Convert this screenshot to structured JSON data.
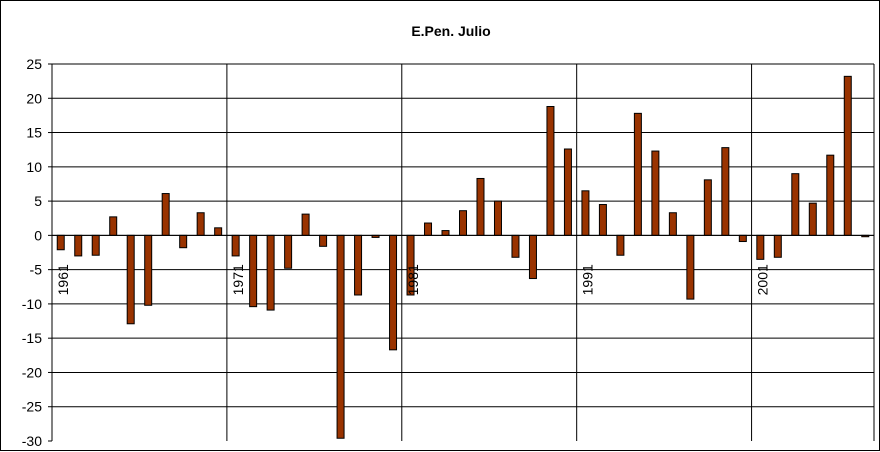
{
  "chart_data": {
    "type": "bar",
    "title": "E.Pen. Julio",
    "xlabel": "",
    "ylabel": "",
    "ylim": [
      -30,
      25
    ],
    "yticks": [
      25,
      20,
      15,
      10,
      5,
      0,
      -5,
      -10,
      -15,
      -20,
      -25,
      -30
    ],
    "x_tick_labels": [
      {
        "label": "1961",
        "index": 0
      },
      {
        "label": "1971",
        "index": 10
      },
      {
        "label": "1981",
        "index": 20
      },
      {
        "label": "1991",
        "index": 30
      },
      {
        "label": "2001",
        "index": 40
      }
    ],
    "grid": true,
    "legend": "none",
    "bar_color": "#993300",
    "series": [
      {
        "values": [
          -2.1,
          -3.0,
          -2.9,
          2.7,
          -12.9,
          -10.2,
          6.1,
          -1.8,
          3.3,
          1.1,
          -3.0,
          -10.4,
          -10.9,
          -4.8,
          3.1,
          -1.6,
          -29.6,
          -8.7,
          -0.3,
          -16.7,
          -8.7,
          1.8,
          0.7,
          3.6,
          8.3,
          5.0,
          -3.2,
          -6.3,
          18.8,
          12.6,
          6.5,
          4.5,
          -2.9,
          17.8,
          12.3,
          3.3,
          -9.3,
          8.1,
          12.8,
          -0.9,
          -3.5,
          -3.2,
          9.0,
          4.7,
          11.7,
          23.2,
          -0.2
        ]
      }
    ]
  }
}
